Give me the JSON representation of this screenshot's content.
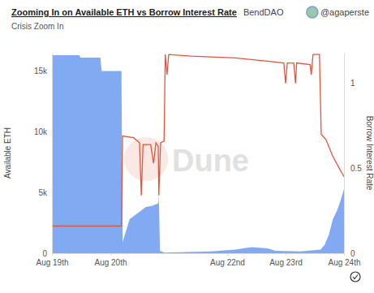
{
  "chart_data": {
    "type": "area",
    "title": "Zooming In on Available ETH vs Borrow Interest Rate",
    "source": "BendDAO",
    "author": "@agaperste",
    "subtitle": "Crisis Zoom In",
    "annotation": "Dune",
    "ylabel": "Available ETH",
    "y2label": "Borrow Interest Rate",
    "grid": false,
    "xlim": [
      19,
      24
    ],
    "xticks": [
      {
        "value": 19,
        "label": "Aug 19th"
      },
      {
        "value": 20,
        "label": "Aug 20th"
      },
      {
        "value": 22,
        "label": "Aug 22nd"
      },
      {
        "value": 23,
        "label": "Aug 23rd"
      },
      {
        "value": 24,
        "label": "Aug 24th"
      }
    ],
    "ylim": [
      0,
      16500
    ],
    "yticks": [
      0,
      {
        "value": 5000,
        "label": "5k"
      },
      {
        "value": 10000,
        "label": "10k"
      },
      {
        "value": 15000,
        "label": "15k"
      }
    ],
    "y2lim": [
      0,
      1.18
    ],
    "y2ticks": [
      0,
      0.5,
      1
    ],
    "series": [
      {
        "type": "area",
        "color": "#82aaf2",
        "axis": "y",
        "x": [
          19.0,
          19.47,
          19.49,
          19.83,
          19.85,
          20.19,
          20.21,
          20.33,
          20.47,
          20.61,
          20.72,
          20.82,
          20.83,
          20.85,
          20.93,
          21.31,
          21.72,
          22.14,
          22.42,
          22.69,
          22.83,
          23.25,
          23.6,
          23.67,
          23.74,
          23.81,
          23.88,
          23.94,
          24.0
        ],
        "values": [
          16300,
          16300,
          16100,
          16100,
          15000,
          15000,
          900,
          2800,
          3300,
          3800,
          3900,
          4100,
          4800,
          200,
          50,
          100,
          150,
          300,
          500,
          400,
          200,
          150,
          300,
          700,
          1500,
          2800,
          3500,
          4300,
          5300
        ]
      },
      {
        "type": "line",
        "color": "#e2553d",
        "axis": "y2",
        "x": [
          19.0,
          20.19,
          20.21,
          20.4,
          20.5,
          20.53,
          20.56,
          20.69,
          20.74,
          20.78,
          20.82,
          20.83,
          20.86,
          20.92,
          20.94,
          20.97,
          21.0,
          21.38,
          22.14,
          22.69,
          22.97,
          23.0,
          23.03,
          23.14,
          23.17,
          23.19,
          23.42,
          23.44,
          23.47,
          23.58,
          23.61,
          23.69,
          23.81,
          23.92,
          24.0
        ],
        "values": [
          0.16,
          0.16,
          0.69,
          0.68,
          0.65,
          0.34,
          0.64,
          0.64,
          0.53,
          0.65,
          0.63,
          0.34,
          0.65,
          0.66,
          1.17,
          1.05,
          1.17,
          1.16,
          1.15,
          1.13,
          1.12,
          1.0,
          1.12,
          1.12,
          1.0,
          1.12,
          1.11,
          1.05,
          1.17,
          1.17,
          0.7,
          0.67,
          0.57,
          0.5,
          0.45
        ]
      }
    ]
  }
}
